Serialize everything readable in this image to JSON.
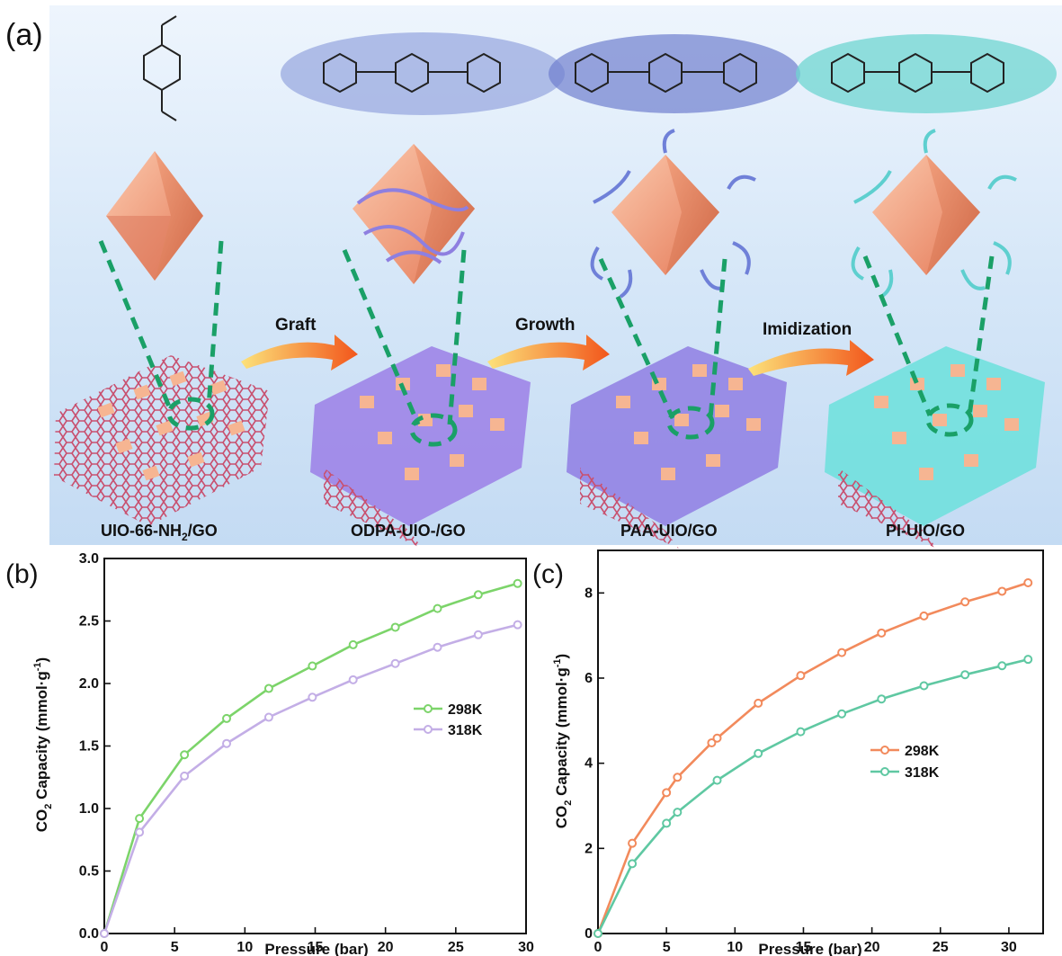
{
  "panel_a": {
    "label": "(a)",
    "stages": [
      {
        "name": "UIO-66-NH2/GO",
        "main": "UIO-66-NH",
        "sub": "2",
        "tail": "/GO"
      },
      {
        "name": "ODPA-UIO-/GO",
        "main": "ODPA-UIO-/GO",
        "sub": "",
        "tail": ""
      },
      {
        "name": "PAA-UIO/GO",
        "main": "PAA-UIO/GO",
        "sub": "",
        "tail": ""
      },
      {
        "name": "PI-UIO/GO",
        "main": "PI-UIO/GO",
        "sub": "",
        "tail": ""
      }
    ],
    "arrows": [
      "Graft",
      "Growth",
      "Imidization"
    ],
    "colors": {
      "background": "#cfe3f7",
      "crystal": "#e8896a",
      "graphene": "#c8506f",
      "odpa_polymer": "#8e7fe0",
      "paa_polymer": "#6f80d8",
      "pi_polymer": "#5ecfcf",
      "green_dash": "#1aa067",
      "arrow": "#f26a1b"
    }
  },
  "chart_data": [
    {
      "panel_label": "(b)",
      "type": "line",
      "xlabel": "Pressure (bar)",
      "ylabel_main": "CO",
      "ylabel_sub": "2",
      "ylabel_rest": " Capacity (mmol·g",
      "ylabel_sup": "-1",
      "ylabel_end": ")",
      "xlim": [
        0,
        30
      ],
      "ylim": [
        0,
        3.0
      ],
      "xticks": [
        "0",
        "5",
        "10",
        "15",
        "20",
        "25",
        "30"
      ],
      "xtick_values": [
        0,
        5,
        10,
        15,
        20,
        25,
        30
      ],
      "yticks": [
        "0.0",
        "0.5",
        "1.0",
        "1.5",
        "2.0",
        "2.5",
        "3.0"
      ],
      "ytick_values": [
        0,
        0.5,
        1.0,
        1.5,
        2.0,
        2.5,
        3.0
      ],
      "legend_position": "center-right",
      "grid": false,
      "series": [
        {
          "name": "298K",
          "color": "#7cd46a",
          "x": [
            0,
            2.5,
            5.7,
            8.7,
            11.7,
            14.8,
            17.7,
            20.7,
            23.7,
            26.6,
            29.4
          ],
          "y": [
            0,
            0.92,
            1.43,
            1.72,
            1.96,
            2.14,
            2.31,
            2.45,
            2.6,
            2.71,
            2.8
          ]
        },
        {
          "name": "318K",
          "color": "#c3aee6",
          "x": [
            0,
            2.5,
            5.7,
            8.7,
            11.7,
            14.8,
            17.7,
            20.7,
            23.7,
            26.6,
            29.4
          ],
          "y": [
            0,
            0.81,
            1.26,
            1.52,
            1.73,
            1.89,
            2.03,
            2.16,
            2.29,
            2.39,
            2.47
          ]
        }
      ]
    },
    {
      "panel_label": "(c)",
      "type": "line",
      "xlabel": "Pressure (bar)",
      "ylabel_main": "CO",
      "ylabel_sub": "2",
      "ylabel_rest": " Capacity (mmol·g",
      "ylabel_sup": "-1",
      "ylabel_end": ")",
      "xlim": [
        0,
        32.5
      ],
      "ylim": [
        0,
        9
      ],
      "xticks": [
        "0",
        "5",
        "10",
        "15",
        "20",
        "25",
        "30"
      ],
      "xtick_values": [
        0,
        5,
        10,
        15,
        20,
        25,
        30
      ],
      "yticks": [
        "0",
        "2",
        "4",
        "6",
        "8"
      ],
      "ytick_values": [
        0,
        2,
        4,
        6,
        8
      ],
      "legend_position": "center-right",
      "grid": false,
      "series": [
        {
          "name": "298K",
          "color": "#f28a5c",
          "x": [
            0,
            2.5,
            5.0,
            5.8,
            8.3,
            8.7,
            11.7,
            14.8,
            17.8,
            20.7,
            23.8,
            26.8,
            29.5,
            31.4
          ],
          "y": [
            0,
            2.12,
            3.31,
            3.67,
            4.48,
            4.59,
            5.41,
            6.06,
            6.6,
            7.06,
            7.46,
            7.79,
            8.04,
            8.24
          ]
        },
        {
          "name": "318K",
          "color": "#5fc8a2",
          "x": [
            0,
            2.5,
            5.0,
            5.8,
            8.7,
            11.7,
            14.8,
            17.8,
            20.7,
            23.8,
            26.8,
            29.5,
            31.4
          ],
          "y": [
            0,
            1.64,
            2.59,
            2.85,
            3.6,
            4.23,
            4.74,
            5.16,
            5.51,
            5.82,
            6.08,
            6.29,
            6.44
          ]
        }
      ]
    }
  ]
}
